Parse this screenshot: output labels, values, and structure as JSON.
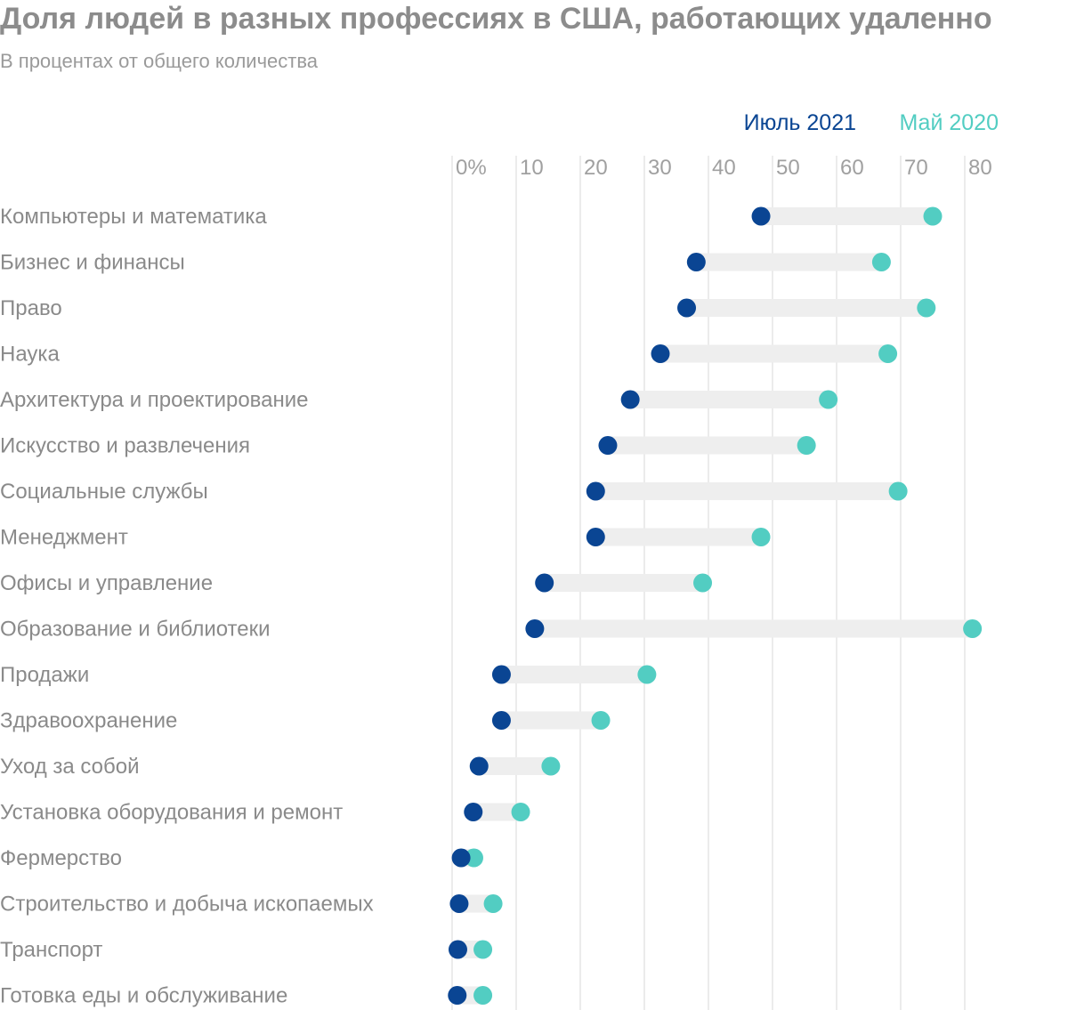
{
  "colors": {
    "july_2021": "#0a4593",
    "may_2020": "#52cdc2",
    "range_bar": "#eeeeee",
    "gridline": "#dedede",
    "label": "#8a8a8a"
  },
  "chart_data": {
    "type": "dumbbell",
    "title": "Доля людей в разных профессиях в США, работающих удаленно",
    "subtitle": "В процентах от общего количества",
    "x_ticks": [
      "0%",
      "10",
      "20",
      "30",
      "40",
      "50",
      "60",
      "70",
      "80"
    ],
    "x_tick_values": [
      0,
      10,
      20,
      30,
      40,
      50,
      60,
      70,
      80
    ],
    "xlim": [
      0,
      85
    ],
    "legend": {
      "placement": "top-right",
      "entries": [
        "Июль 2021",
        "Май 2020"
      ]
    },
    "grid": true,
    "categories": [
      "Компьютеры и математика",
      "Бизнес и финансы",
      "Право",
      "Наука",
      "Архитектура и проектирование",
      "Искусство и развлечения",
      "Социальные службы",
      "Менеджмент",
      "Офисы и управление",
      "Образование и библиотеки",
      "Продажи",
      "Здравоохранение",
      "Уход за собой",
      "Установка оборудования и ремонт",
      "Фермерство",
      "Строительство и добыча ископаемых",
      "Транспорт",
      "Готовка еды и обслуживание"
    ],
    "series": [
      {
        "name": "Июль 2021",
        "values": [
          48.2,
          38.1,
          36.6,
          32.5,
          27.8,
          24.3,
          22.4,
          22.4,
          14.4,
          12.9,
          7.7,
          7.7,
          4.2,
          3.3,
          1.4,
          1.1,
          0.9,
          0.8
        ]
      },
      {
        "name": "Май 2020",
        "values": [
          75.0,
          67.0,
          74.0,
          68.0,
          58.7,
          55.3,
          69.6,
          48.2,
          39.1,
          81.2,
          30.4,
          23.2,
          15.4,
          10.7,
          3.4,
          6.4,
          4.8,
          4.8
        ]
      }
    ]
  }
}
